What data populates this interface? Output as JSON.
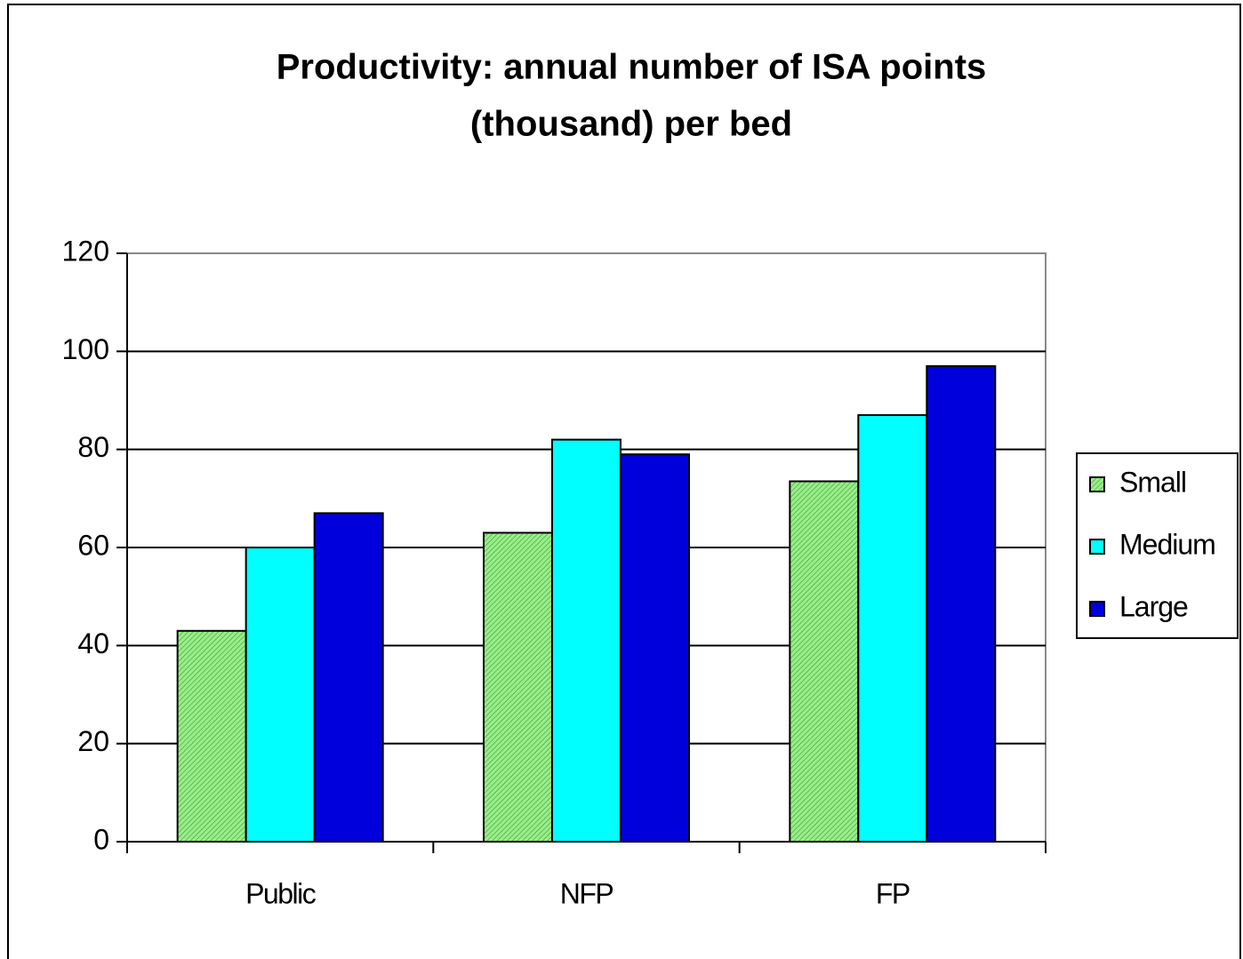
{
  "chart_data": {
    "type": "bar",
    "title": [
      "Productivity: annual number of ISA points",
      "(thousand) per bed"
    ],
    "categories": [
      "Public",
      "NFP",
      "FP"
    ],
    "series": [
      {
        "name": "Small",
        "color": "#99ee88",
        "hatched": true,
        "values": [
          43,
          63,
          73.5
        ]
      },
      {
        "name": "Medium",
        "color": "#00ffff",
        "values": [
          60,
          82,
          87
        ]
      },
      {
        "name": "Large",
        "color": "#0000dd",
        "values": [
          67,
          79,
          97
        ]
      }
    ],
    "ylim": [
      0,
      120
    ],
    "yticks": [
      0,
      20,
      40,
      60,
      80,
      100,
      120
    ],
    "grid": true,
    "legend": "right"
  }
}
